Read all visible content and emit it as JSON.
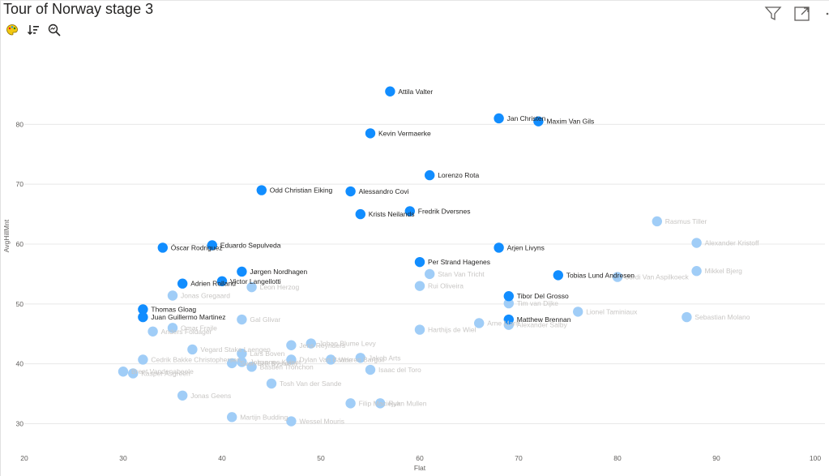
{
  "visual": {
    "title": "Tour of Norway stage 3"
  },
  "toolbar": {
    "icons": [
      "palette-icon",
      "sort-icon",
      "zoom-icon"
    ]
  },
  "header_icons": [
    "filter-icon",
    "focus-mode-icon",
    "more-options-icon"
  ],
  "colors": {
    "highlight": "#118DFF",
    "dim": "#A0CDF7",
    "label_dark": "#252423",
    "label_dim": "#C8C6C4",
    "grid": "#E8E8E8"
  },
  "chart_data": {
    "type": "scatter",
    "title": "Tour of Norway stage 3",
    "xlabel": "Flat",
    "ylabel": "AvgHillMnt",
    "xlim": [
      20,
      100
    ],
    "ylim": [
      26,
      94
    ],
    "xticks": [
      20,
      30,
      40,
      50,
      60,
      70,
      80,
      90,
      100
    ],
    "yticks": [
      30,
      40,
      50,
      60,
      70,
      80
    ],
    "points": [
      {
        "name": "Attila Valter",
        "x": 57,
        "y": 85.5,
        "hl": true
      },
      {
        "name": "Jan Christen",
        "x": 68,
        "y": 81,
        "hl": true
      },
      {
        "name": "Maxim Van Gils",
        "x": 72,
        "y": 80.5,
        "hl": true
      },
      {
        "name": "Kevin Vermaerke",
        "x": 55,
        "y": 78.5,
        "hl": true
      },
      {
        "name": "Lorenzo Rota",
        "x": 61,
        "y": 71.5,
        "hl": true
      },
      {
        "name": "Odd Christian Eiking",
        "x": 44,
        "y": 69,
        "hl": true
      },
      {
        "name": "Alessandro Covi",
        "x": 53,
        "y": 68.8,
        "hl": true
      },
      {
        "name": "Fredrik Dversnes",
        "x": 59,
        "y": 65.5,
        "hl": true
      },
      {
        "name": "Krists Neilands",
        "x": 54,
        "y": 65,
        "hl": true
      },
      {
        "name": "Rasmus Tiller",
        "x": 84,
        "y": 63.8,
        "hl": false
      },
      {
        "name": "Alexander Kristoff",
        "x": 88,
        "y": 60.2,
        "hl": false
      },
      {
        "name": "Eduardo Sepulveda",
        "x": 39,
        "y": 59.8,
        "hl": true
      },
      {
        "name": "Óscar Rodriguez",
        "x": 34,
        "y": 59.4,
        "hl": true
      },
      {
        "name": "Arjen Livyns",
        "x": 68,
        "y": 59.4,
        "hl": true
      },
      {
        "name": "Per Strand Hagenes",
        "x": 60,
        "y": 57,
        "hl": true
      },
      {
        "name": "Mikkel Bjerg",
        "x": 88,
        "y": 55.5,
        "hl": false
      },
      {
        "name": "Jørgen Nordhagen",
        "x": 42,
        "y": 55.4,
        "hl": true
      },
      {
        "name": "Stan Van Tricht",
        "x": 61,
        "y": 55,
        "hl": false
      },
      {
        "name": "Tobias Lund Andresen",
        "x": 74,
        "y": 54.8,
        "hl": true
      },
      {
        "name": "Jordi Van Aspilkoeck",
        "x": 80,
        "y": 54.5,
        "hl": false
      },
      {
        "name": "Victor Langellotti",
        "x": 40,
        "y": 53.8,
        "hl": true
      },
      {
        "name": "Adrien Rolland",
        "x": 36,
        "y": 53.4,
        "hl": true
      },
      {
        "name": "Leon Herzog",
        "x": 43,
        "y": 52.8,
        "hl": false
      },
      {
        "name": "Rui Oliveira",
        "x": 60,
        "y": 53,
        "hl": false
      },
      {
        "name": "Jonas Gregaard",
        "x": 35,
        "y": 51.4,
        "hl": false
      },
      {
        "name": "Tibor Del Grosso",
        "x": 69,
        "y": 51.3,
        "hl": true
      },
      {
        "name": "Tim van Dijke",
        "x": 69,
        "y": 50.1,
        "hl": false
      },
      {
        "name": "Thomas Gloag",
        "x": 32,
        "y": 49.1,
        "hl": true
      },
      {
        "name": "Lionel Taminiaux",
        "x": 76,
        "y": 48.7,
        "hl": false
      },
      {
        "name": "Juan Guillermo Martinez",
        "x": 32,
        "y": 47.8,
        "hl": true
      },
      {
        "name": "Sebastian Molano",
        "x": 87,
        "y": 47.8,
        "hl": false
      },
      {
        "name": "Gal Glivar",
        "x": 42,
        "y": 47.4,
        "hl": false
      },
      {
        "name": "Matthew Brennan",
        "x": 69,
        "y": 47.4,
        "hl": true
      },
      {
        "name": "Arne Marit",
        "x": 66,
        "y": 46.8,
        "hl": false
      },
      {
        "name": "Alexander Salby",
        "x": 69,
        "y": 46.5,
        "hl": false
      },
      {
        "name": "Omar Fraile",
        "x": 35,
        "y": 46,
        "hl": false
      },
      {
        "name": "Harthijs de Wiel",
        "x": 60,
        "y": 45.7,
        "hl": false
      },
      {
        "name": "Anders Foldager",
        "x": 33,
        "y": 45.4,
        "hl": false
      },
      {
        "name": "Johan Blume Levy",
        "x": 49,
        "y": 43.4,
        "hl": false
      },
      {
        "name": "Jens Reynders",
        "x": 47,
        "y": 43.1,
        "hl": false
      },
      {
        "name": "Vegard Stake Laengen",
        "x": 37,
        "y": 42.4,
        "hl": false
      },
      {
        "name": "Lars Boven",
        "x": 42,
        "y": 41.7,
        "hl": false
      },
      {
        "name": "Jakob Arts",
        "x": 54,
        "y": 41,
        "hl": false
      },
      {
        "name": "Dylan Van Baarle",
        "x": 47,
        "y": 40.7,
        "hl": false
      },
      {
        "name": "Warren Barguil",
        "x": 51,
        "y": 40.7,
        "hl": false
      },
      {
        "name": "Cedrik Bakke Christophersen",
        "x": 32,
        "y": 40.7,
        "hl": false
      },
      {
        "name": "Johannes Kulset",
        "x": 42,
        "y": 40.3,
        "hl": false
      },
      {
        "name": "Sven Erik Bystrøm",
        "x": 41,
        "y": 40.1,
        "hl": false
      },
      {
        "name": "Bastien Tronchon",
        "x": 43,
        "y": 39.5,
        "hl": false
      },
      {
        "name": "Isaac del Toro",
        "x": 55,
        "y": 39,
        "hl": false
      },
      {
        "name": "Brent Vandenabeele",
        "x": 30,
        "y": 38.7,
        "hl": false
      },
      {
        "name": "Kasper Asgreen",
        "x": 31,
        "y": 38.4,
        "hl": false
      },
      {
        "name": "Tosh Van der Sande",
        "x": 45,
        "y": 36.7,
        "hl": false
      },
      {
        "name": "Jonas Geens",
        "x": 36,
        "y": 34.7,
        "hl": false
      },
      {
        "name": "Filip Maciejuk",
        "x": 53,
        "y": 33.4,
        "hl": false
      },
      {
        "name": "Ryan Mullen",
        "x": 56,
        "y": 33.4,
        "hl": false
      },
      {
        "name": "Martijn Budding",
        "x": 41,
        "y": 31.1,
        "hl": false
      },
      {
        "name": "Wessel Mouris",
        "x": 47,
        "y": 30.4,
        "hl": false
      }
    ]
  }
}
